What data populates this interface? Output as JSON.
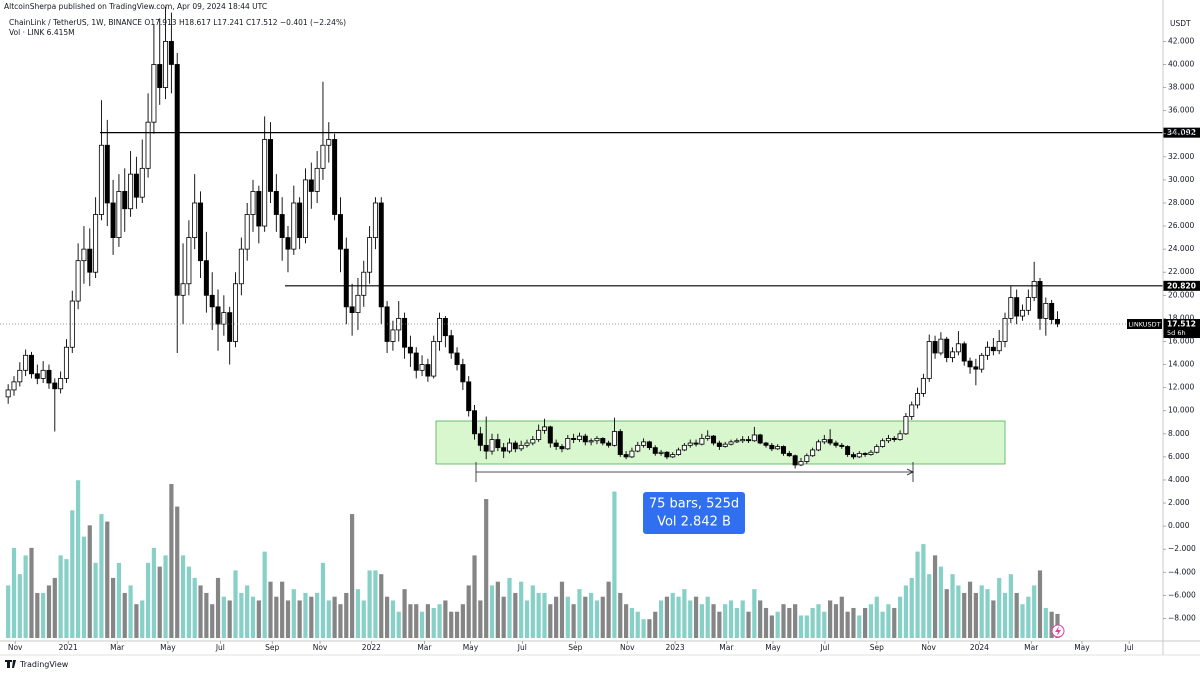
{
  "chart_data": {
    "type": "candlestick",
    "publisher": "AltcoinSherpa published on TradingView.com, Apr 09, 2024 18:44 UTC",
    "legend": "ChainLink / TetherUS, 1W, BINANCE  O17.913  H18.617  L17.241  C17.512  −0.401 (−2.24%)",
    "volume_legend": "Vol · LINK  6.415M",
    "currency": "USDT",
    "symbol": "LINKUSDT",
    "countdown": "5d 6h",
    "brand": "TradingView",
    "measure": [
      "75 bars, 525d",
      "Vol 2.842 B"
    ],
    "up_color": "#ffffff",
    "down_color": "#000000",
    "wick_color": "#000000",
    "volume_up_color": "#86d0c8",
    "volume_down_color": "#858585",
    "grid": false,
    "xlim": [
      -1.4,
      198.1
    ],
    "xticks": [
      {
        "value": 1.2,
        "label": "Nov"
      },
      {
        "value": 10.3,
        "label": "2021"
      },
      {
        "value": 18.7,
        "label": "Mar"
      },
      {
        "value": 27.4,
        "label": "May"
      },
      {
        "value": 36.4,
        "label": "Jul"
      },
      {
        "value": 45.3,
        "label": "Sep"
      },
      {
        "value": 53.5,
        "label": "Nov"
      },
      {
        "value": 62.3,
        "label": "2022"
      },
      {
        "value": 71.4,
        "label": "Mar"
      },
      {
        "value": 79.3,
        "label": "May"
      },
      {
        "value": 88.2,
        "label": "Jul"
      },
      {
        "value": 97.3,
        "label": "Sep"
      },
      {
        "value": 106.2,
        "label": "Nov"
      },
      {
        "value": 114.4,
        "label": "2023"
      },
      {
        "value": 123.2,
        "label": "Mar"
      },
      {
        "value": 131.2,
        "label": "May"
      },
      {
        "value": 140.1,
        "label": "Jul"
      },
      {
        "value": 149.0,
        "label": "Sep"
      },
      {
        "value": 157.9,
        "label": "Nov"
      },
      {
        "value": 166.6,
        "label": "2024"
      },
      {
        "value": 175.5,
        "label": "Mar"
      },
      {
        "value": 184.2,
        "label": "May"
      },
      {
        "value": 192.3,
        "label": "Jul"
      }
    ],
    "ylim": [
      -10.3,
      44.2
    ],
    "yticks": [
      {
        "value": -8,
        "label": "−8.000"
      },
      {
        "value": -6,
        "label": "−6.000"
      },
      {
        "value": -4,
        "label": "−4.000"
      },
      {
        "value": -2,
        "label": "−2.000"
      },
      {
        "value": 0,
        "label": "0.000"
      },
      {
        "value": 2,
        "label": "2.000"
      },
      {
        "value": 4,
        "label": "4.000"
      },
      {
        "value": 6,
        "label": "6.000"
      },
      {
        "value": 8,
        "label": "8.000"
      },
      {
        "value": 10,
        "label": "10.000"
      },
      {
        "value": 12,
        "label": "12.000"
      },
      {
        "value": 14,
        "label": "14.000"
      },
      {
        "value": 16,
        "label": "16.000"
      },
      {
        "value": 18,
        "label": "18.000"
      },
      {
        "value": 20,
        "label": "20.000"
      },
      {
        "value": 22,
        "label": "22.000"
      },
      {
        "value": 24,
        "label": "24.000"
      },
      {
        "value": 26,
        "label": "26.000"
      },
      {
        "value": 28,
        "label": "28.000"
      },
      {
        "value": 30,
        "label": "30.000"
      },
      {
        "value": 32,
        "label": "32.000"
      },
      {
        "value": 34,
        "label": "34.000"
      },
      {
        "value": 36,
        "label": "36.000"
      },
      {
        "value": 38,
        "label": "38.000"
      },
      {
        "value": 40,
        "label": "40.000"
      },
      {
        "value": 42,
        "label": "42.000"
      }
    ],
    "levels": [
      34.092,
      {
        "value": 20.82,
        "label": "20.820"
      }
    ],
    "volume_lim": [
      0,
      45
    ],
    "ohlc": [
      [
        11.2,
        12.3,
        10.6,
        11.8
      ],
      [
        11.8,
        13.0,
        11.3,
        12.5
      ],
      [
        12.5,
        14.2,
        12.1,
        13.5
      ],
      [
        13.5,
        15.3,
        13.0,
        14.8
      ],
      [
        14.8,
        15.1,
        12.8,
        13.2
      ],
      [
        13.2,
        14.0,
        12.3,
        12.8
      ],
      [
        12.8,
        14.3,
        12.4,
        13.5
      ],
      [
        13.5,
        14.0,
        11.9,
        12.4
      ],
      [
        12.4,
        12.8,
        8.2,
        11.9
      ],
      [
        11.9,
        13.4,
        11.5,
        12.8
      ],
      [
        12.8,
        16.2,
        12.4,
        15.5
      ],
      [
        15.5,
        20.4,
        15.0,
        19.5
      ],
      [
        19.5,
        24.5,
        18.8,
        23.0
      ],
      [
        23.0,
        26.0,
        21.0,
        24.0
      ],
      [
        24.0,
        25.8,
        20.8,
        22.0
      ],
      [
        22.0,
        28.5,
        21.5,
        27.0
      ],
      [
        27.0,
        36.9,
        26.5,
        33.0
      ],
      [
        33.0,
        35.2,
        26.0,
        28.0
      ],
      [
        28.0,
        30.0,
        23.5,
        25.0
      ],
      [
        25.0,
        30.5,
        24.2,
        29.0
      ],
      [
        29.0,
        31.0,
        25.5,
        27.5
      ],
      [
        27.5,
        32.5,
        26.8,
        30.5
      ],
      [
        30.5,
        32.0,
        27.5,
        28.5
      ],
      [
        28.5,
        33.5,
        28.0,
        31.0
      ],
      [
        31.0,
        37.5,
        30.2,
        35.0
      ],
      [
        35.0,
        43.5,
        34.0,
        40.0
      ],
      [
        40.0,
        44.0,
        36.5,
        38.0
      ],
      [
        38.0,
        45.0,
        37.0,
        42.0
      ],
      [
        42.0,
        44.5,
        37.5,
        40.0
      ],
      [
        40.0,
        41.0,
        15.0,
        20.0
      ],
      [
        20.0,
        24.5,
        17.5,
        21.0
      ],
      [
        21.0,
        26.5,
        20.0,
        25.0
      ],
      [
        25.0,
        30.5,
        24.0,
        28.0
      ],
      [
        28.0,
        29.0,
        21.5,
        23.0
      ],
      [
        23.0,
        25.5,
        18.5,
        20.0
      ],
      [
        20.0,
        22.0,
        17.0,
        19.0
      ],
      [
        19.0,
        20.5,
        15.2,
        17.5
      ],
      [
        17.5,
        20.0,
        16.5,
        18.5
      ],
      [
        18.5,
        19.0,
        14.0,
        16.0
      ],
      [
        16.0,
        22.0,
        15.5,
        21.0
      ],
      [
        21.0,
        25.0,
        20.0,
        24.0
      ],
      [
        24.0,
        28.0,
        23.0,
        27.0
      ],
      [
        27.0,
        30.0,
        25.5,
        29.0
      ],
      [
        29.0,
        29.5,
        24.5,
        26.0
      ],
      [
        26.0,
        35.5,
        25.5,
        33.5
      ],
      [
        33.5,
        35.0,
        28.0,
        29.0
      ],
      [
        29.0,
        30.5,
        25.5,
        27.0
      ],
      [
        27.0,
        28.5,
        23.0,
        25.0
      ],
      [
        25.0,
        26.0,
        22.0,
        24.0
      ],
      [
        24.0,
        29.5,
        23.5,
        28.0
      ],
      [
        28.0,
        28.5,
        24.0,
        25.0
      ],
      [
        25.0,
        31.0,
        24.5,
        30.0
      ],
      [
        30.0,
        31.5,
        27.5,
        29.0
      ],
      [
        29.0,
        32.5,
        28.0,
        31.0
      ],
      [
        31.0,
        38.5,
        30.0,
        33.0
      ],
      [
        33.0,
        35.0,
        31.5,
        33.5
      ],
      [
        33.5,
        34.0,
        26.5,
        27.0
      ],
      [
        27.0,
        28.5,
        22.0,
        24.0
      ],
      [
        24.0,
        25.0,
        17.5,
        19.0
      ],
      [
        19.0,
        21.0,
        16.5,
        18.5
      ],
      [
        18.5,
        21.5,
        17.0,
        20.0
      ],
      [
        20.0,
        23.0,
        19.0,
        22.0
      ],
      [
        22.0,
        26.0,
        21.0,
        25.0
      ],
      [
        25.0,
        28.5,
        24.0,
        28.0
      ],
      [
        28.0,
        28.5,
        17.5,
        19.0
      ],
      [
        19.0,
        19.5,
        15.0,
        16.0
      ],
      [
        16.0,
        17.8,
        15.2,
        17.0
      ],
      [
        17.0,
        19.5,
        16.0,
        18.0
      ],
      [
        18.0,
        18.5,
        14.5,
        15.5
      ],
      [
        15.5,
        16.5,
        13.8,
        15.0
      ],
      [
        15.0,
        15.5,
        12.8,
        13.5
      ],
      [
        13.5,
        14.8,
        13.0,
        14.0
      ],
      [
        14.0,
        14.5,
        12.5,
        13.0
      ],
      [
        13.0,
        16.5,
        12.8,
        16.0
      ],
      [
        16.0,
        18.5,
        15.2,
        18.0
      ],
      [
        18.0,
        18.2,
        15.5,
        16.5
      ],
      [
        16.5,
        17.0,
        14.5,
        15.0
      ],
      [
        15.0,
        15.5,
        13.5,
        14.0
      ],
      [
        14.0,
        14.5,
        11.8,
        12.5
      ],
      [
        12.5,
        13.0,
        9.5,
        10.0
      ],
      [
        10.0,
        10.5,
        7.5,
        8.0
      ],
      [
        8.0,
        8.6,
        6.5,
        7.0
      ],
      [
        7.0,
        9.5,
        5.8,
        6.5
      ],
      [
        6.5,
        8.0,
        6.2,
        7.5
      ],
      [
        7.5,
        8.0,
        6.5,
        6.8
      ],
      [
        6.8,
        7.2,
        5.9,
        6.5
      ],
      [
        6.5,
        7.6,
        6.3,
        7.2
      ],
      [
        7.2,
        7.4,
        6.4,
        6.7
      ],
      [
        6.7,
        7.4,
        6.5,
        7.0
      ],
      [
        7.0,
        7.5,
        6.8,
        7.2
      ],
      [
        7.2,
        7.8,
        7.0,
        7.5
      ],
      [
        7.5,
        8.8,
        7.3,
        8.3
      ],
      [
        8.3,
        9.3,
        8.0,
        8.6
      ],
      [
        8.6,
        8.7,
        6.8,
        7.2
      ],
      [
        7.2,
        7.5,
        6.6,
        6.9
      ],
      [
        6.9,
        7.1,
        6.4,
        6.7
      ],
      [
        6.7,
        7.9,
        6.6,
        7.6
      ],
      [
        7.6,
        8.0,
        7.2,
        7.5
      ],
      [
        7.5,
        8.1,
        7.3,
        7.8
      ],
      [
        7.8,
        8.0,
        7.0,
        7.3
      ],
      [
        7.3,
        7.6,
        7.0,
        7.4
      ],
      [
        7.4,
        7.8,
        7.1,
        7.6
      ],
      [
        7.6,
        7.7,
        7.0,
        7.2
      ],
      [
        7.2,
        7.4,
        6.8,
        7.0
      ],
      [
        7.0,
        9.4,
        6.9,
        8.2
      ],
      [
        8.2,
        8.4,
        6.0,
        6.2
      ],
      [
        6.2,
        6.5,
        5.8,
        6.0
      ],
      [
        6.0,
        6.8,
        5.9,
        6.5
      ],
      [
        6.5,
        7.3,
        6.4,
        7.0
      ],
      [
        7.0,
        7.6,
        6.8,
        7.3
      ],
      [
        7.3,
        7.4,
        6.6,
        6.8
      ],
      [
        6.8,
        7.0,
        6.1,
        6.3
      ],
      [
        6.3,
        6.6,
        6.1,
        6.4
      ],
      [
        6.4,
        6.5,
        5.8,
        6.0
      ],
      [
        6.0,
        6.4,
        5.9,
        6.2
      ],
      [
        6.2,
        6.8,
        6.1,
        6.6
      ],
      [
        6.6,
        7.2,
        6.5,
        7.0
      ],
      [
        7.0,
        7.5,
        6.8,
        7.2
      ],
      [
        7.2,
        7.5,
        6.9,
        7.1
      ],
      [
        7.1,
        8.0,
        7.0,
        7.6
      ],
      [
        7.6,
        8.3,
        7.4,
        7.8
      ],
      [
        7.8,
        7.9,
        7.0,
        7.2
      ],
      [
        7.2,
        7.4,
        6.6,
        6.9
      ],
      [
        6.9,
        7.3,
        6.8,
        7.1
      ],
      [
        7.1,
        7.5,
        7.0,
        7.3
      ],
      [
        7.3,
        7.6,
        7.2,
        7.4
      ],
      [
        7.4,
        7.8,
        7.2,
        7.5
      ],
      [
        7.5,
        7.8,
        7.2,
        7.4
      ],
      [
        7.4,
        8.6,
        7.3,
        7.9
      ],
      [
        7.9,
        8.0,
        7.1,
        7.2
      ],
      [
        7.2,
        7.3,
        6.8,
        7.0
      ],
      [
        7.0,
        7.2,
        6.5,
        6.7
      ],
      [
        6.7,
        7.1,
        6.6,
        6.9
      ],
      [
        6.9,
        7.0,
        6.1,
        6.3
      ],
      [
        6.3,
        6.5,
        6.0,
        6.1
      ],
      [
        6.1,
        6.2,
        5.0,
        5.3
      ],
      [
        5.3,
        5.9,
        5.2,
        5.6
      ],
      [
        5.6,
        6.3,
        5.4,
        6.1
      ],
      [
        6.1,
        6.8,
        6.0,
        6.6
      ],
      [
        6.6,
        7.5,
        6.5,
        7.3
      ],
      [
        7.3,
        7.9,
        7.1,
        7.5
      ],
      [
        7.5,
        8.4,
        7.0,
        7.2
      ],
      [
        7.2,
        7.4,
        6.8,
        7.0
      ],
      [
        7.0,
        7.2,
        6.7,
        6.9
      ],
      [
        6.9,
        7.0,
        6.0,
        6.2
      ],
      [
        6.2,
        6.4,
        5.8,
        6.0
      ],
      [
        6.0,
        6.5,
        5.9,
        6.3
      ],
      [
        6.3,
        6.4,
        6.0,
        6.2
      ],
      [
        6.2,
        6.6,
        6.1,
        6.4
      ],
      [
        6.4,
        7.1,
        6.3,
        6.9
      ],
      [
        6.9,
        7.6,
        6.8,
        7.4
      ],
      [
        7.4,
        7.9,
        7.2,
        7.6
      ],
      [
        7.6,
        7.8,
        7.3,
        7.5
      ],
      [
        7.5,
        8.3,
        7.4,
        8.0
      ],
      [
        8.0,
        9.8,
        7.9,
        9.5
      ],
      [
        9.5,
        10.8,
        9.2,
        10.5
      ],
      [
        10.5,
        12.0,
        10.2,
        11.5
      ],
      [
        11.5,
        13.2,
        11.2,
        12.8
      ],
      [
        12.8,
        16.6,
        12.5,
        16.0
      ],
      [
        16.0,
        16.5,
        14.5,
        15.0
      ],
      [
        15.0,
        16.8,
        14.8,
        16.2
      ],
      [
        16.2,
        16.4,
        14.2,
        14.6
      ],
      [
        14.6,
        15.5,
        14.2,
        15.1
      ],
      [
        15.1,
        16.9,
        14.8,
        15.8
      ],
      [
        15.8,
        16.0,
        13.9,
        14.3
      ],
      [
        14.3,
        14.6,
        13.2,
        13.8
      ],
      [
        13.8,
        14.5,
        12.2,
        13.6
      ],
      [
        13.6,
        15.0,
        13.3,
        14.8
      ],
      [
        14.8,
        16.0,
        14.4,
        15.5
      ],
      [
        15.5,
        16.3,
        14.8,
        15.2
      ],
      [
        15.2,
        17.0,
        14.9,
        16.0
      ],
      [
        16.0,
        18.5,
        15.5,
        18.0
      ],
      [
        18.0,
        20.8,
        17.6,
        19.8
      ],
      [
        19.8,
        20.5,
        17.5,
        18.2
      ],
      [
        18.2,
        19.2,
        17.8,
        18.7
      ],
      [
        18.7,
        20.5,
        18.3,
        19.8
      ],
      [
        19.8,
        22.9,
        19.5,
        21.2
      ],
      [
        21.2,
        21.5,
        17.0,
        18.0
      ],
      [
        18.0,
        19.8,
        16.5,
        19.3
      ],
      [
        19.3,
        19.6,
        17.5,
        17.9
      ],
      [
        17.913,
        18.617,
        17.241,
        17.512
      ]
    ],
    "volume": [
      14,
      24,
      17,
      22,
      24,
      12,
      12,
      14,
      16,
      22,
      21,
      34,
      42,
      27,
      30,
      20,
      33,
      31,
      16,
      20,
      12,
      14,
      9,
      10,
      20,
      24,
      19,
      22,
      41,
      35,
      22,
      19,
      16,
      14,
      12,
      9,
      16,
      11,
      10,
      18,
      12,
      14,
      11,
      10,
      23,
      15,
      11,
      15,
      10,
      13,
      10,
      12,
      11,
      12,
      20,
      10,
      11,
      9,
      12,
      33,
      13,
      10,
      18,
      18,
      17,
      11,
      10,
      7,
      13,
      9,
      9,
      7,
      9,
      8,
      9,
      10,
      7,
      7,
      9,
      14,
      22,
      10,
      37,
      14,
      15,
      11,
      16,
      12,
      15,
      10,
      14,
      12,
      12,
      9,
      11,
      15,
      11,
      9,
      13,
      11,
      12,
      10,
      11,
      15,
      39,
      12,
      9,
      8,
      7,
      5,
      5,
      7,
      10,
      11,
      12,
      11,
      13,
      10,
      11,
      9,
      11,
      9,
      7,
      9,
      10,
      8,
      10,
      7,
      13,
      10,
      8,
      6,
      7,
      9,
      8,
      9,
      6,
      6,
      8,
      9,
      7,
      10,
      9,
      11,
      7,
      8,
      6,
      8,
      9,
      11,
      7,
      9,
      8,
      11,
      14,
      16,
      23,
      25,
      17,
      22,
      19,
      13,
      17,
      14,
      12,
      15,
      12,
      14,
      13,
      10,
      16,
      12,
      17,
      12,
      9,
      11,
      14,
      18,
      8,
      7,
      6.415
    ]
  }
}
